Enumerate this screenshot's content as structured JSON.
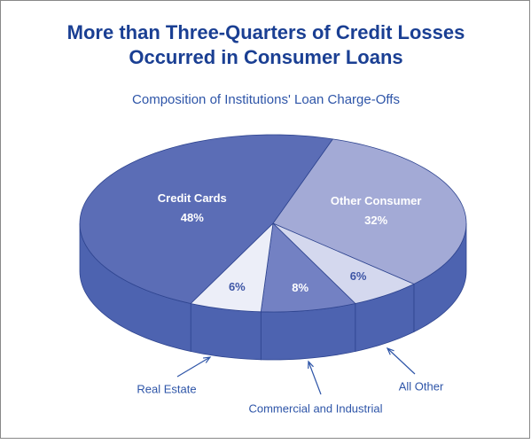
{
  "chart_data": {
    "type": "pie",
    "title": [
      "More than Three-Quarters of Credit Losses",
      "Occurred in Consumer Loans"
    ],
    "subtitle": "Composition of Institutions' Loan Charge-Offs",
    "categories": [
      "Other Consumer",
      "All Other",
      "Commercial and Industrial",
      "Real Estate",
      "Credit Cards"
    ],
    "values": [
      32,
      6,
      8,
      6,
      48
    ],
    "value_labels": [
      "32%",
      "6%",
      "8%",
      "6%",
      "48%"
    ],
    "colors": [
      "#a3aad6",
      "#d4d8ee",
      "#7381c3",
      "#eceef8",
      "#5b6db6"
    ],
    "side_color": "#4d63b0"
  }
}
